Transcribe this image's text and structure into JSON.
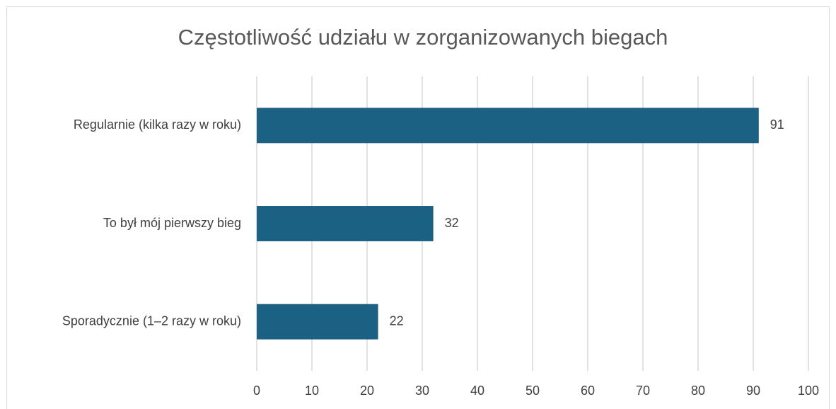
{
  "chart_data": {
    "type": "bar",
    "orientation": "horizontal",
    "title": "Częstotliwość udziału w zorganizowanych biegach",
    "categories": [
      "Regularnie (kilka razy w roku)",
      "To był mój pierwszy bieg",
      "Sporadycznie (1–2 razy w roku)"
    ],
    "values": [
      91,
      32,
      22
    ],
    "color": "#1b6184",
    "xlim": [
      0,
      100
    ],
    "xticks": [
      0,
      10,
      20,
      30,
      40,
      50,
      60,
      70,
      80,
      90,
      100
    ],
    "grid": true,
    "data_labels": true
  }
}
